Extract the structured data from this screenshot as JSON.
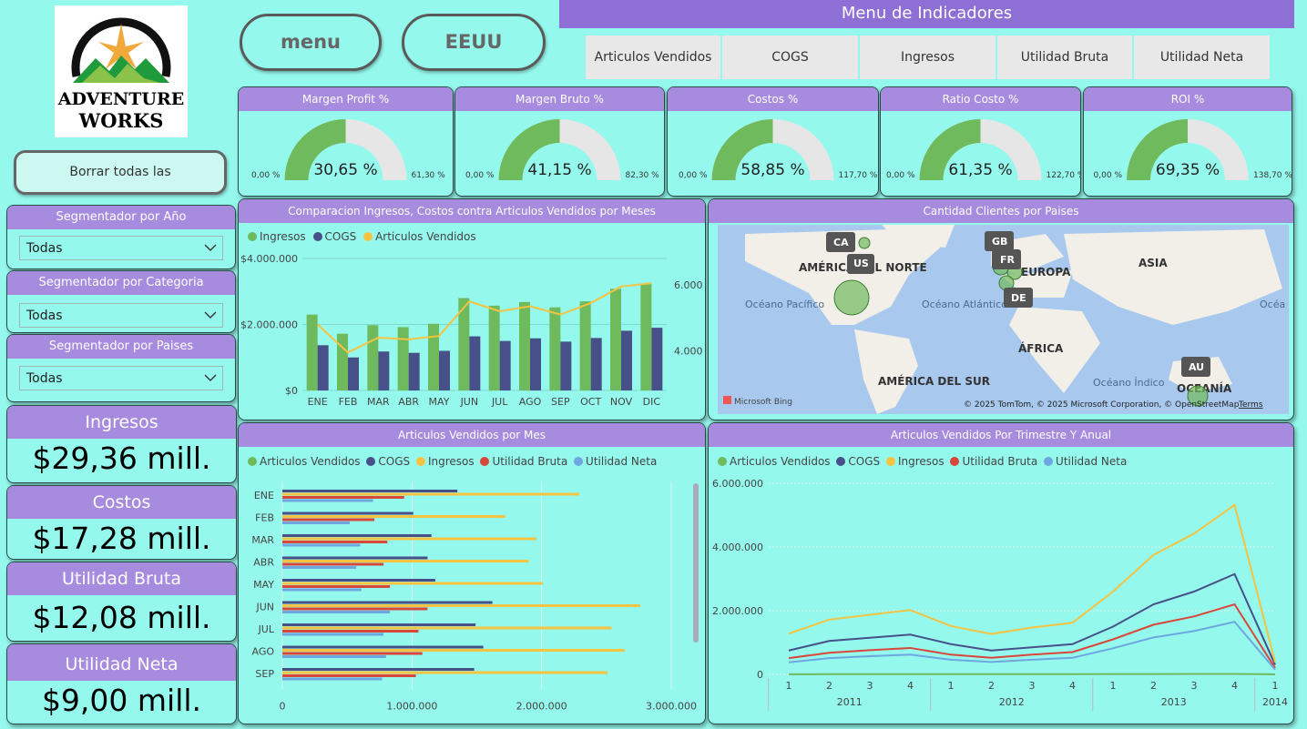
{
  "logo": {
    "line1": "Adventure",
    "line2": "Works"
  },
  "buttons": {
    "menu": "menu",
    "country": "EEUU",
    "clear": "Borrar todas las segmentaciones"
  },
  "menu": {
    "title": "Menu de Indicadores",
    "tabs": [
      "Articulos Vendidos",
      "COGS",
      "Ingresos",
      "Utilidad Bruta",
      "Utilidad Neta"
    ]
  },
  "slicers": [
    {
      "title": "Segmentador por Año",
      "value": "Todas"
    },
    {
      "title": "Segmentador por Categoria",
      "value": "Todas"
    },
    {
      "title": "Segmentador por Paises",
      "value": "Todas"
    }
  ],
  "kpis": [
    {
      "title": "Ingresos",
      "value": "$29,36 mill."
    },
    {
      "title": "Costos",
      "value": "$17,28 mill."
    },
    {
      "title": "Utilidad Bruta",
      "value": "$12,08 mill."
    },
    {
      "title": "Utilidad Neta",
      "value": "$9,00 mill."
    }
  ],
  "gauges": [
    {
      "title": "Margen Profit %",
      "value": 30.65,
      "label": "30,65 %",
      "min": "0,00 %",
      "max": "61,30 %",
      "maxval": 61.3
    },
    {
      "title": "Margen Bruto %",
      "value": 41.15,
      "label": "41,15 %",
      "min": "0,00 %",
      "max": "82,30 %",
      "maxval": 82.3
    },
    {
      "title": "Costos %",
      "value": 58.85,
      "label": "58,85 %",
      "min": "0,00 %",
      "max": "117,70 %",
      "maxval": 117.7
    },
    {
      "title": "Ratio Costo %",
      "value": 61.35,
      "label": "61,35 %",
      "min": "0,00 %",
      "max": "122,70 %",
      "maxval": 122.7
    },
    {
      "title": "ROI %",
      "value": 69.35,
      "label": "69,35 %",
      "min": "0,00 %",
      "max": "138,70 %",
      "maxval": 138.7
    }
  ],
  "colors": {
    "green": "#6fba5d",
    "navy": "#475089",
    "yellow": "#f5c342",
    "red": "#d9463a",
    "lightblue": "#6ea6e0",
    "gauge_bg": "#e6e6e6"
  },
  "chart_data": [
    {
      "type": "bar",
      "title": "Comparacion Ingresos, Costos contra Articulos Vendidos por Meses",
      "legend": [
        "Ingresos",
        "COGS",
        "Articulos Vendidos"
      ],
      "categories": [
        "ENE",
        "FEB",
        "MAR",
        "ABR",
        "MAY",
        "JUN",
        "JUL",
        "AGO",
        "SEP",
        "OCT",
        "NOV",
        "DIC"
      ],
      "series": [
        {
          "name": "Ingresos",
          "values": [
            2300000,
            1720000,
            1980000,
            1920000,
            2020000,
            2800000,
            2570000,
            2680000,
            2520000,
            2700000,
            3080000,
            3230000
          ]
        },
        {
          "name": "COGS",
          "values": [
            1370000,
            1000000,
            1180000,
            1140000,
            1200000,
            1640000,
            1500000,
            1580000,
            1480000,
            1590000,
            1810000,
            1900000
          ]
        },
        {
          "name": "Articulos Vendidos",
          "axis": "right",
          "values": [
            4800,
            3950,
            4400,
            4350,
            4450,
            5500,
            5200,
            5350,
            5100,
            5450,
            5950,
            6050
          ]
        }
      ],
      "y_ticks": [
        "$0",
        "$2.000.000",
        "$4.000.000"
      ],
      "ylim": [
        0,
        4000000
      ],
      "y2_ticks": [
        "4.000",
        "6.000"
      ],
      "y2lim": [
        2800,
        6800
      ]
    },
    {
      "type": "bar",
      "orientation": "horizontal",
      "title": "Articulos Vendidos por Mes",
      "legend": [
        "Articulos Vendidos",
        "COGS",
        "Ingresos",
        "Utilidad Bruta",
        "Utilidad Neta"
      ],
      "categories": [
        "ENE",
        "FEB",
        "MAR",
        "ABR",
        "MAY",
        "JUN",
        "JUL",
        "AGO",
        "SEP"
      ],
      "series": [
        {
          "name": "COGS",
          "values": [
            1350000,
            1010000,
            1150000,
            1120000,
            1180000,
            1620000,
            1490000,
            1550000,
            1480000
          ]
        },
        {
          "name": "Ingresos",
          "values": [
            2290000,
            1720000,
            1960000,
            1900000,
            2010000,
            2760000,
            2540000,
            2640000,
            2510000
          ]
        },
        {
          "name": "Utilidad Bruta",
          "values": [
            940000,
            710000,
            810000,
            780000,
            830000,
            1120000,
            1050000,
            1080000,
            1030000
          ]
        },
        {
          "name": "Utilidad Neta",
          "values": [
            700000,
            520000,
            600000,
            570000,
            610000,
            830000,
            780000,
            800000,
            770000
          ]
        }
      ],
      "x_ticks": [
        "0",
        "1.000.000",
        "2.000.000",
        "3.000.000"
      ],
      "xlim": [
        0,
        3000000
      ]
    },
    {
      "type": "line",
      "title": "Articulos Vendidos Por Trimestre Y Anual",
      "legend": [
        "Articulos Vendidos",
        "COGS",
        "Ingresos",
        "Utilidad Bruta",
        "Utilidad Neta"
      ],
      "x": [
        "1",
        "2",
        "3",
        "4",
        "1",
        "2",
        "3",
        "4",
        "1",
        "2",
        "3",
        "4",
        "1"
      ],
      "x_groups": [
        {
          "label": "2011",
          "count": 4
        },
        {
          "label": "2012",
          "count": 4
        },
        {
          "label": "2013",
          "count": 4
        },
        {
          "label": "2014",
          "count": 1
        }
      ],
      "series": [
        {
          "name": "Articulos Vendidos",
          "values": [
            4000,
            5500,
            6000,
            6500,
            6000,
            5500,
            6000,
            6500,
            9000,
            12000,
            14000,
            16000,
            1500
          ]
        },
        {
          "name": "COGS",
          "values": [
            750000,
            1050000,
            1150000,
            1250000,
            950000,
            750000,
            850000,
            950000,
            1500000,
            2200000,
            2600000,
            3150000,
            300000
          ]
        },
        {
          "name": "Ingresos",
          "values": [
            1280000,
            1720000,
            1870000,
            2020000,
            1520000,
            1270000,
            1470000,
            1620000,
            2600000,
            3750000,
            4420000,
            5320000,
            380000
          ]
        },
        {
          "name": "Utilidad Bruta",
          "values": [
            510000,
            680000,
            760000,
            830000,
            620000,
            520000,
            620000,
            700000,
            1100000,
            1560000,
            1820000,
            2200000,
            200000
          ]
        },
        {
          "name": "Utilidad Neta",
          "values": [
            380000,
            510000,
            570000,
            620000,
            460000,
            390000,
            460000,
            520000,
            820000,
            1160000,
            1360000,
            1650000,
            150000
          ]
        }
      ],
      "y_ticks": [
        "0",
        "2.000.000",
        "4.000.000",
        "6.000.000"
      ],
      "ylim": [
        0,
        6000000
      ]
    }
  ],
  "map": {
    "title": "Cantidad Clientes por Paises",
    "continents": [
      "AMÉRICA DEL NORTE",
      "EUROPA",
      "ASIA",
      "ÁFRICA",
      "AMÉRICA DEL SUR",
      "OCEANÍA"
    ],
    "oceans": [
      "Océano Pacífico",
      "Océano Atlántico",
      "Océano Índico",
      "Océa Pacífic"
    ],
    "countries": [
      "CA",
      "US",
      "GB",
      "FR",
      "DE",
      "AU"
    ],
    "attribution": "© 2025 TomTom, © 2025 Microsoft Corporation, © OpenStreetMap",
    "terms": "Terms",
    "brand": "Microsoft Bing"
  }
}
